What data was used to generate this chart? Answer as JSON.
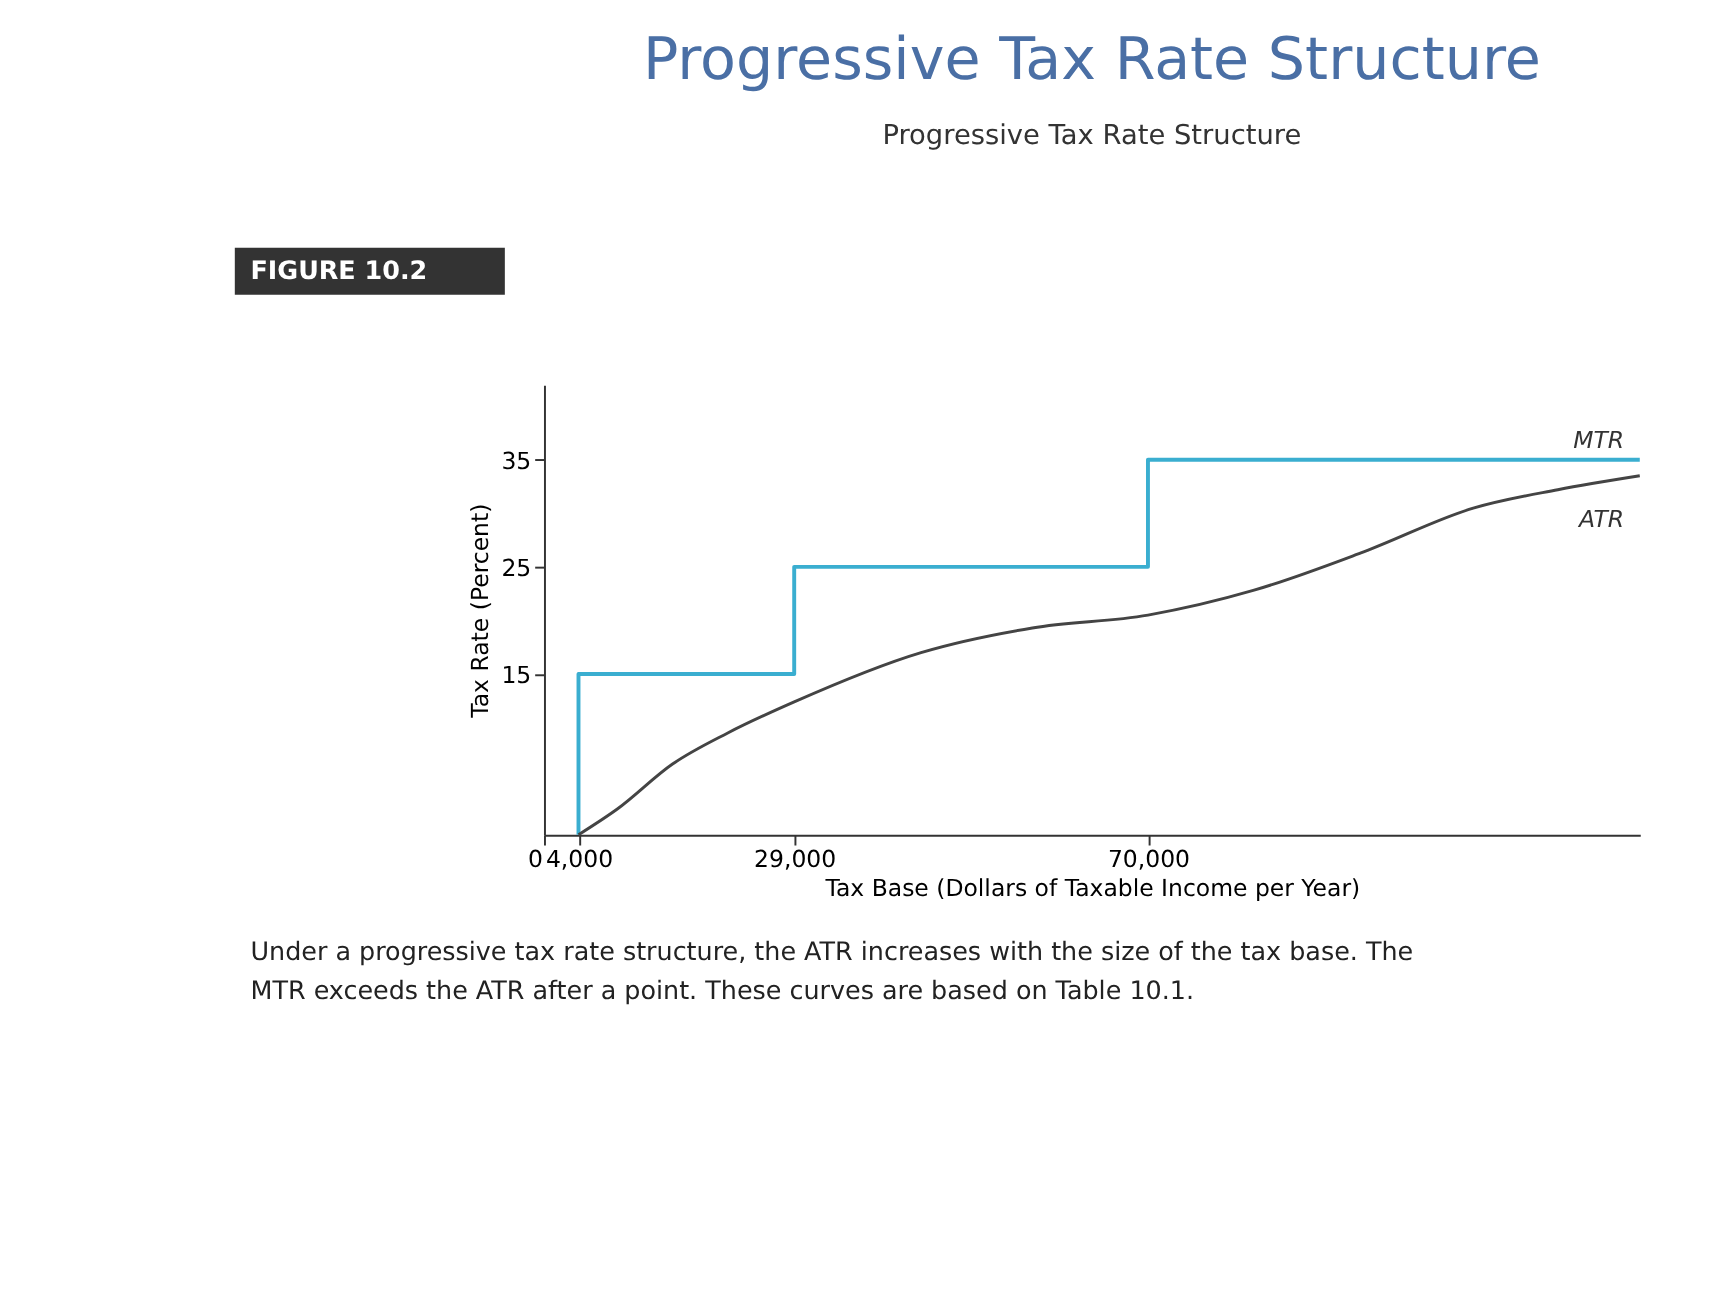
{
  "chart_data": {
    "type": "line",
    "title": "Progressive Tax Rate Structure",
    "subtitle": "Progressive Tax Rate Structure",
    "xlabel": "Tax Base (Dollars of Taxable Income per Year)",
    "ylabel": "Tax Rate (Percent)",
    "xlim": [
      0,
      127000
    ],
    "xticks": [
      0,
      {
        "value": 4000,
        "label": "4,000"
      },
      {
        "value": 29000,
        "label": "29,000"
      },
      {
        "value": 70000,
        "label": "70,000"
      }
    ],
    "ylim": [
      0,
      42
    ],
    "yticks": [
      15,
      25,
      35
    ],
    "series": [
      {
        "name": "MTR",
        "type": "step",
        "color": "#3aaed0",
        "x": [
          4000,
          4000,
          29000,
          70000,
          127000
        ],
        "values": [
          0,
          15,
          25,
          35,
          35
        ]
      },
      {
        "name": "ATR",
        "type": "line",
        "color": "#444444",
        "x": [
          4000,
          8500,
          14900,
          21300,
          29000,
          43700,
          56600,
          70000,
          82200,
          95000,
          107800,
          117500,
          127000
        ],
        "values": [
          0,
          2.4,
          6.6,
          9.5,
          12.4,
          17,
          19.3,
          20.5,
          22.8,
          26.4,
          30.5,
          32.2,
          33.5
        ]
      }
    ],
    "annotations": [
      "FIGURE 10.2",
      "Under a progressive tax rate structure, the ATR increases with the size of the tax base. The",
      "MTR exceeds the ATR after a point. These curves are based on Table 10.1."
    ]
  }
}
